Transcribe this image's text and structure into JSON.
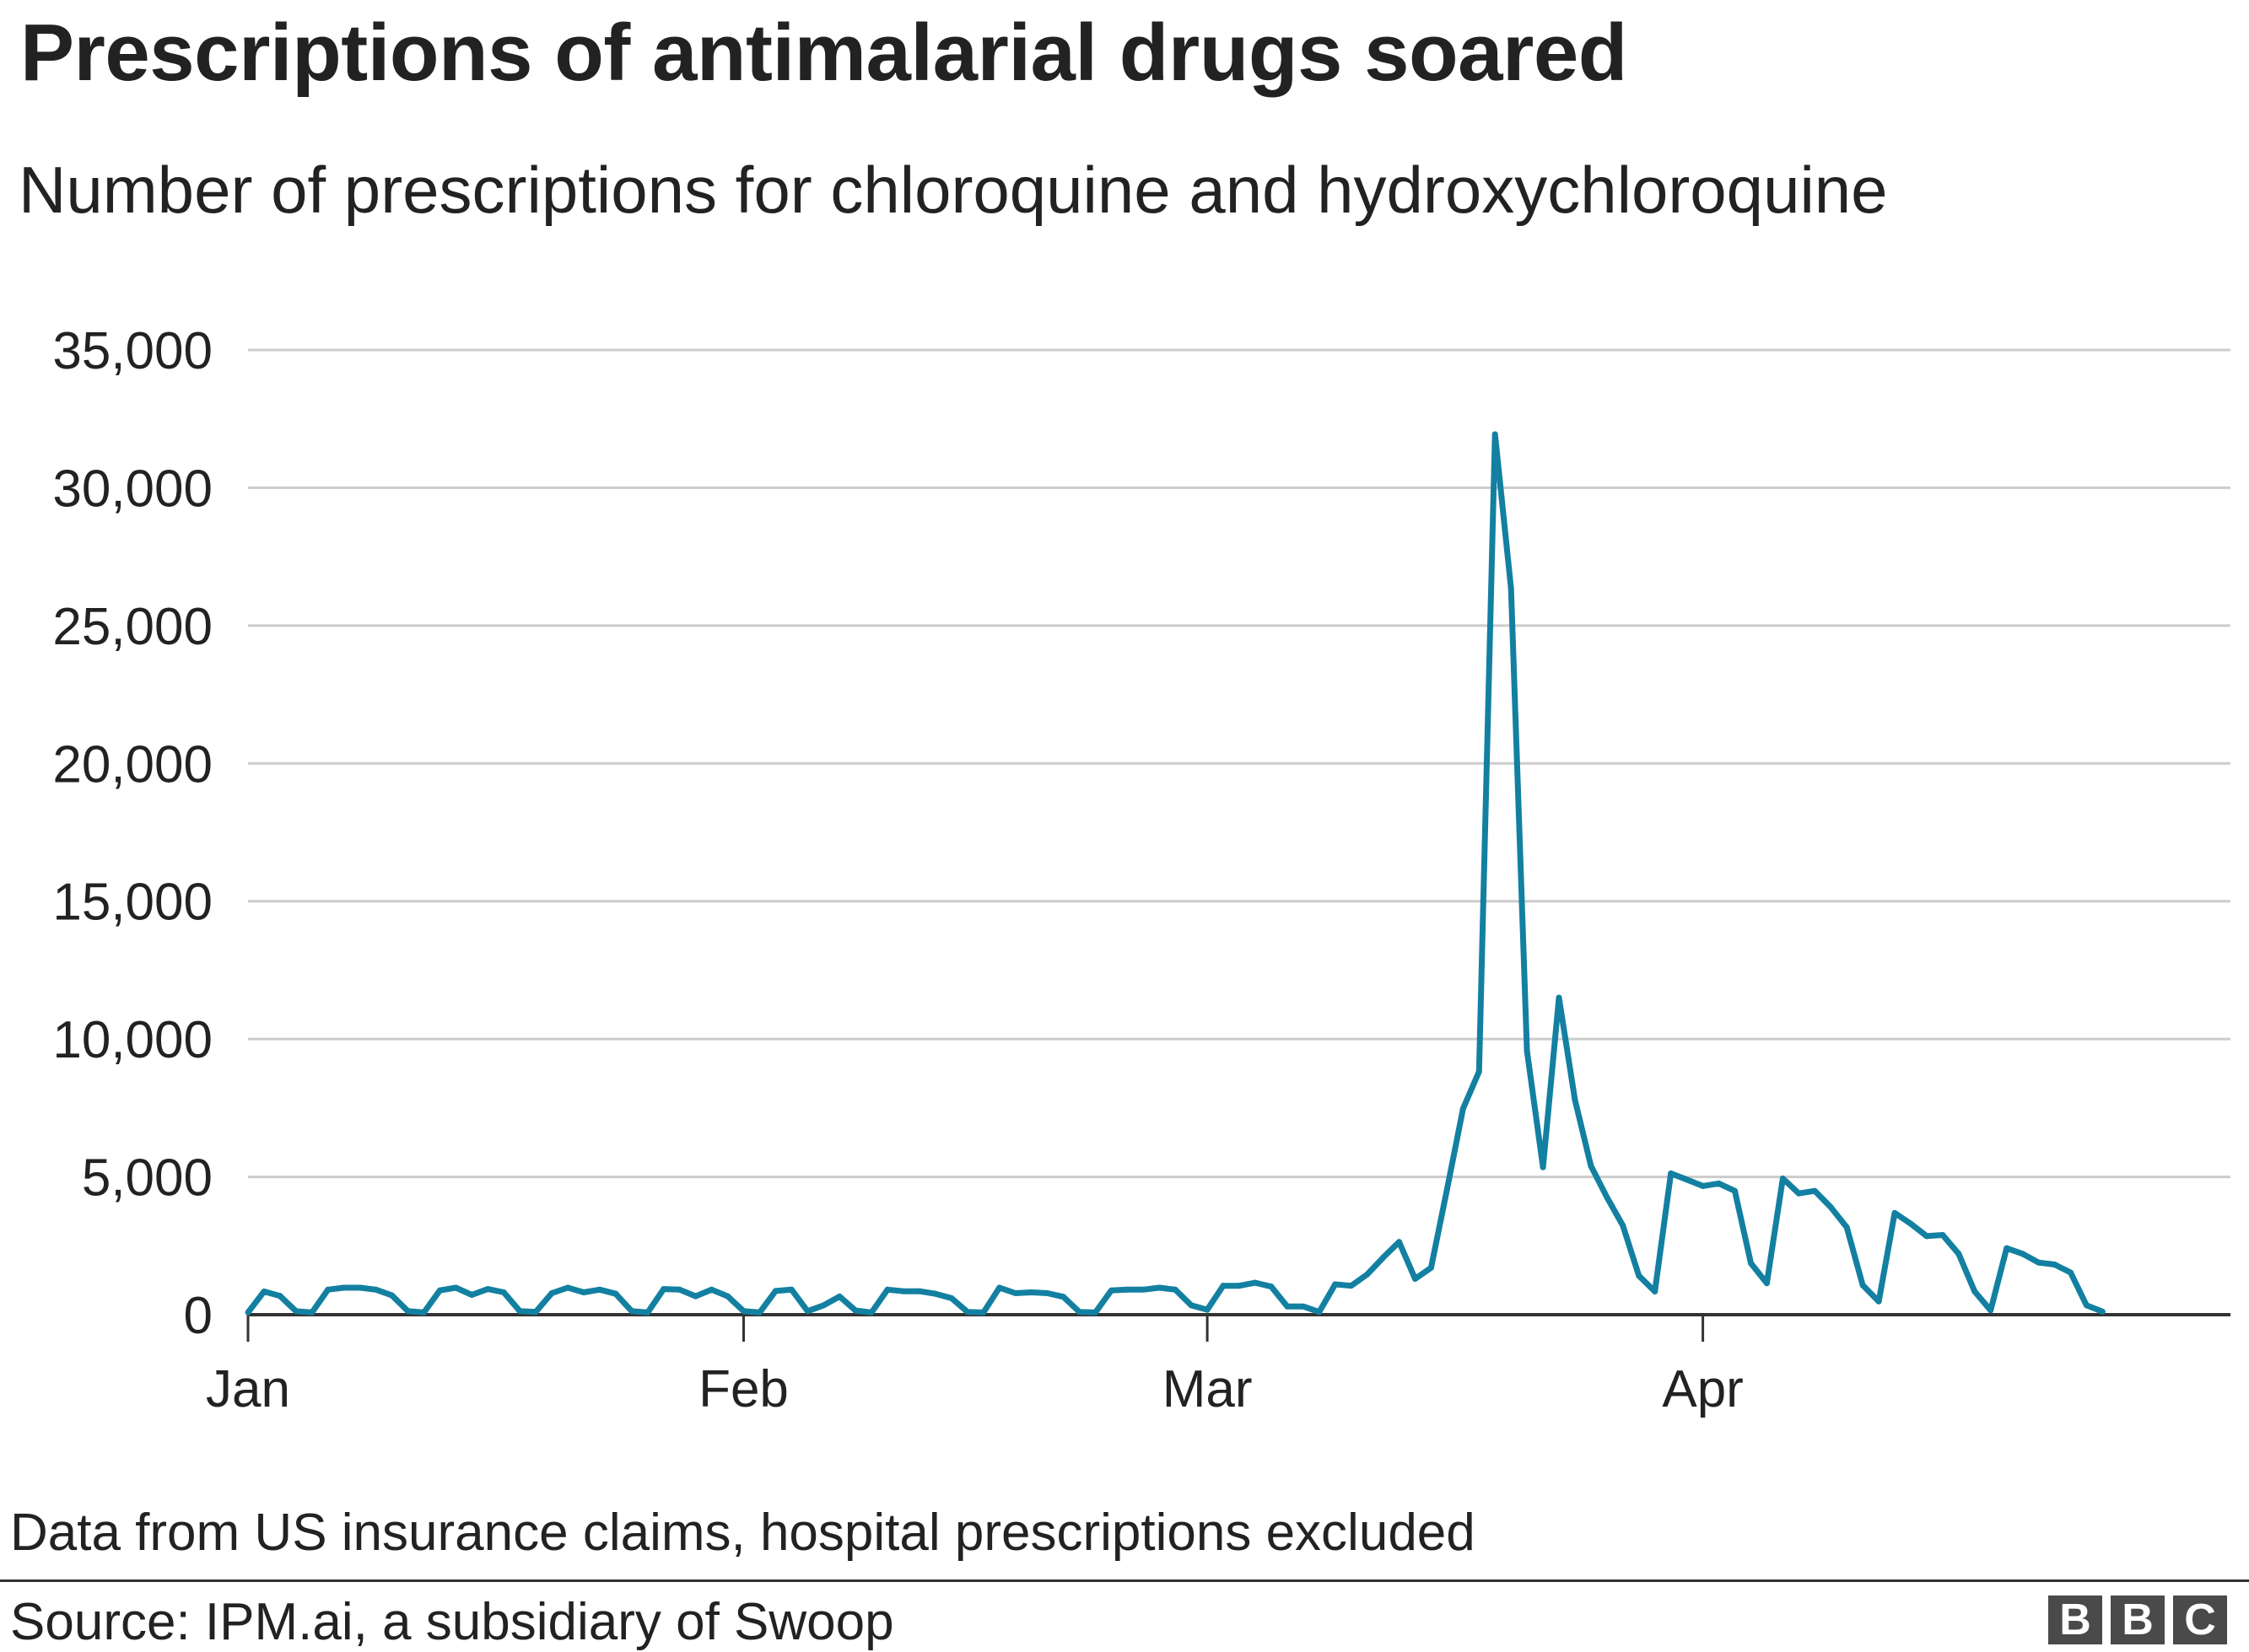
{
  "title": "Prescriptions of antimalarial drugs soared",
  "subtitle": "Number of prescriptions for chloroquine and hydroxychloroquine",
  "note": "Data from US insurance claims, hospital prescriptions excluded",
  "source": "Source: IPM.ai, a subsidiary of Swoop",
  "logo": [
    "B",
    "B",
    "C"
  ],
  "colors": {
    "line": "#1380A1",
    "grid": "#cccccc",
    "axis": "#333333",
    "text": "#222222"
  },
  "chart_data": {
    "type": "line",
    "title": "Prescriptions of antimalarial drugs soared",
    "subtitle": "Number of prescriptions for chloroquine and hydroxychloroquine",
    "xlabel": "",
    "ylabel": "",
    "x_start": "2020-01-01",
    "x_end": "2020-04-26",
    "x_ticks": [
      {
        "date": "2020-01-01",
        "label": "Jan"
      },
      {
        "date": "2020-02-01",
        "label": "Feb"
      },
      {
        "date": "2020-03-01",
        "label": "Mar"
      },
      {
        "date": "2020-04-01",
        "label": "Apr"
      }
    ],
    "x_range": [
      "2020-01-01",
      "2020-05-04"
    ],
    "ylim": [
      0,
      35000
    ],
    "y_ticks": [
      {
        "value": 0,
        "label": "0"
      },
      {
        "value": 5000,
        "label": "5,000"
      },
      {
        "value": 10000,
        "label": "10,000"
      },
      {
        "value": 15000,
        "label": "15,000"
      },
      {
        "value": 20000,
        "label": "20,000"
      },
      {
        "value": 25000,
        "label": "25,000"
      },
      {
        "value": 30000,
        "label": "30,000"
      },
      {
        "value": 35000,
        "label": "35,000"
      }
    ],
    "grid": true,
    "values": [
      80,
      840,
      680,
      130,
      80,
      910,
      980,
      980,
      910,
      700,
      130,
      80,
      880,
      980,
      720,
      930,
      810,
      130,
      100,
      780,
      980,
      810,
      910,
      760,
      130,
      80,
      930,
      910,
      670,
      910,
      670,
      130,
      80,
      860,
      910,
      130,
      340,
      660,
      150,
      80,
      910,
      850,
      850,
      760,
      600,
      100,
      80,
      980,
      780,
      810,
      780,
      650,
      100,
      80,
      880,
      910,
      910,
      980,
      910,
      340,
      180,
      1050,
      1050,
      1160,
      1020,
      300,
      300,
      100,
      1100,
      1050,
      1460,
      2070,
      2640,
      1300,
      1700,
      4560,
      7470,
      8820,
      31940,
      26350,
      9570,
      5350,
      11500,
      7790,
      5400,
      4260,
      3230,
      1410,
      840,
      5125,
      4900,
      4670,
      4760,
      4490,
      1870,
      1140,
      4940,
      4400,
      4490,
      3900,
      3170,
      1070,
      480,
      3690,
      3300,
      2850,
      2890,
      2210,
      840,
      160,
      2410,
      2210,
      1890,
      1820,
      1530,
      340,
      110
    ]
  }
}
